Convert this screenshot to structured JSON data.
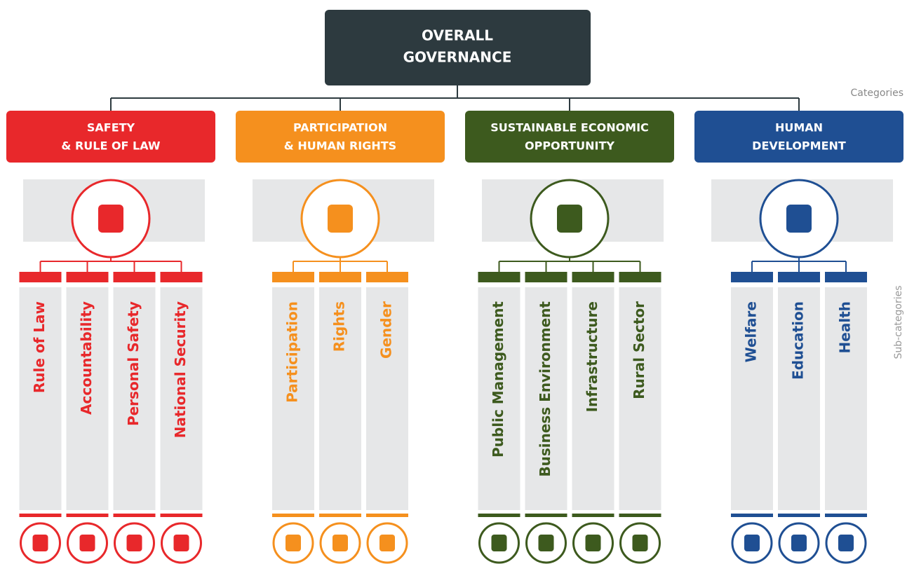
{
  "header": {
    "title_lines": [
      "OVERALL",
      "GOVERNANCE"
    ]
  },
  "side_labels": {
    "categories": "Categories",
    "subcategories": "Sub-categories"
  },
  "categories": [
    {
      "title_lines": [
        "SAFETY",
        "& RULE OF LAW"
      ],
      "color": "#e8282b",
      "subcategories": [
        "Rule of Law",
        "Accountability",
        "Personal Safety",
        "National Security"
      ]
    },
    {
      "title_lines": [
        "PARTICIPATION",
        "& HUMAN RIGHTS"
      ],
      "color": "#f5901e",
      "subcategories": [
        "Participation",
        "Rights",
        "Gender"
      ]
    },
    {
      "title_lines": [
        "SUSTAINABLE ECONOMIC",
        "OPPORTUNITY"
      ],
      "color": "#3d5a1e",
      "subcategories": [
        "Public Management",
        "Business Environment",
        "Infrastructure",
        "Rural Sector"
      ]
    },
    {
      "title_lines": [
        "HUMAN",
        "DEVELOPMENT"
      ],
      "color": "#1f4f93",
      "subcategories": [
        "Welfare",
        "Education",
        "Health"
      ]
    }
  ]
}
